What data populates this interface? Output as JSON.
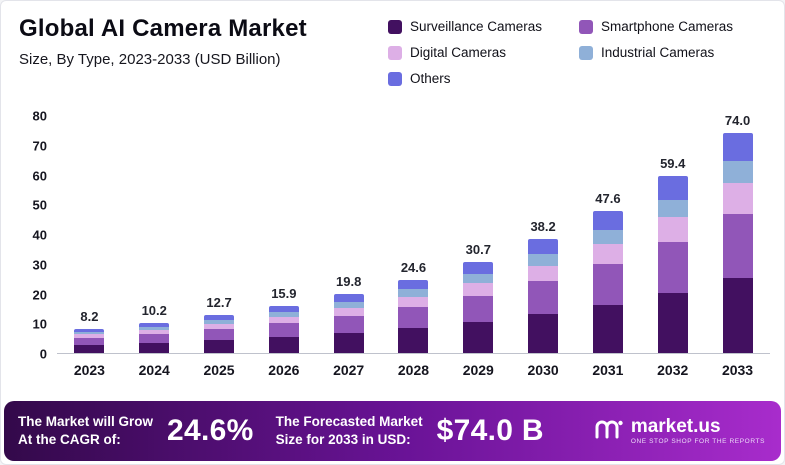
{
  "header": {
    "title": "Global AI Camera Market",
    "subtitle": "Size, By Type, 2023-2033 (USD Billion)"
  },
  "legend": [
    {
      "label": "Surveillance Cameras",
      "color": "#421060"
    },
    {
      "label": "Smartphone Cameras",
      "color": "#9156b8"
    },
    {
      "label": "Digital Cameras",
      "color": "#ddafe6"
    },
    {
      "label": "Industrial Cameras",
      "color": "#8fb0d8"
    },
    {
      "label": "Others",
      "color": "#6a6de0"
    }
  ],
  "chart_data": {
    "type": "bar",
    "stacked": true,
    "title": "Global AI Camera Market",
    "subtitle": "Size, By Type, 2023-2033 (USD Billion)",
    "categories": [
      "2023",
      "2024",
      "2025",
      "2026",
      "2027",
      "2028",
      "2029",
      "2030",
      "2031",
      "2032",
      "2033"
    ],
    "totals": [
      "8.2",
      "10.2",
      "12.7",
      "15.9",
      "19.8",
      "24.6",
      "30.7",
      "38.2",
      "47.6",
      "59.4",
      "74.0"
    ],
    "series": [
      {
        "name": "Surveillance Cameras",
        "values": [
          2.8,
          3.5,
          4.3,
          5.4,
          6.7,
          8.4,
          10.4,
          13.0,
          16.2,
          20.2,
          25.2
        ]
      },
      {
        "name": "Smartphone Cameras",
        "values": [
          2.4,
          3.0,
          3.7,
          4.6,
          5.7,
          7.1,
          8.9,
          11.1,
          13.8,
          17.2,
          21.5
        ]
      },
      {
        "name": "Digital Cameras",
        "values": [
          1.1,
          1.4,
          1.8,
          2.2,
          2.8,
          3.4,
          4.3,
          5.3,
          6.7,
          8.3,
          10.4
        ]
      },
      {
        "name": "Industrial Cameras",
        "values": [
          0.8,
          1.0,
          1.3,
          1.6,
          2.0,
          2.5,
          3.1,
          3.8,
          4.8,
          5.9,
          7.4
        ]
      },
      {
        "name": "Others",
        "values": [
          1.1,
          1.3,
          1.6,
          2.1,
          2.6,
          3.2,
          4.0,
          5.0,
          6.1,
          7.8,
          9.5
        ]
      }
    ],
    "ylim": [
      0,
      80
    ],
    "yticks": [
      0,
      10,
      20,
      30,
      40,
      50,
      60,
      70,
      80
    ],
    "grid": false,
    "legend_position": "top-right"
  },
  "banner": {
    "cagr_label_line1": "The Market will Grow",
    "cagr_label_line2": "At the CAGR of:",
    "cagr_value": "24.6%",
    "forecast_label_line1": "The Forecasted Market",
    "forecast_label_line2": "Size for 2033 in USD:",
    "forecast_value": "$74.0 B",
    "brand": "market.us",
    "brand_tagline": "ONE STOP SHOP FOR THE REPORTS"
  }
}
